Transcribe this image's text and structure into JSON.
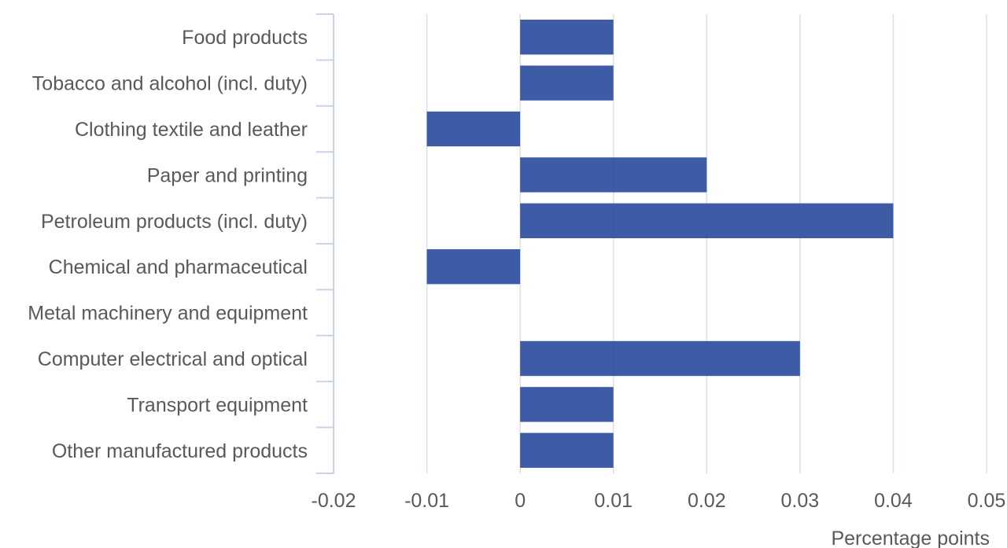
{
  "chart_data": {
    "type": "bar",
    "orientation": "horizontal",
    "categories": [
      "Food products",
      "Tobacco and alcohol (incl. duty)",
      "Clothing textile and leather",
      "Paper and printing",
      "Petroleum products (incl. duty)",
      "Chemical and pharmaceutical",
      "Metal machinery and equipment",
      "Computer electrical and optical",
      "Transport equipment",
      "Other manufactured products"
    ],
    "values": [
      0.01,
      0.01,
      -0.01,
      0.02,
      0.04,
      -0.01,
      0,
      0.03,
      0.01,
      0.01
    ],
    "xlim": [
      -0.02,
      0.05
    ],
    "xticks": [
      -0.02,
      -0.01,
      0,
      0.01,
      0.02,
      0.03,
      0.04,
      0.05
    ],
    "xtick_labels": [
      "-0.02",
      "-0.01",
      "0",
      "0.01",
      "0.02",
      "0.03",
      "0.04",
      "0.05"
    ],
    "xlabel": "Percentage points",
    "grid": "vertical",
    "colors": {
      "bar": "#2f4f9e",
      "grid": "#dcdfe6",
      "axis": "#c9d3e8",
      "text": "#595959"
    }
  }
}
